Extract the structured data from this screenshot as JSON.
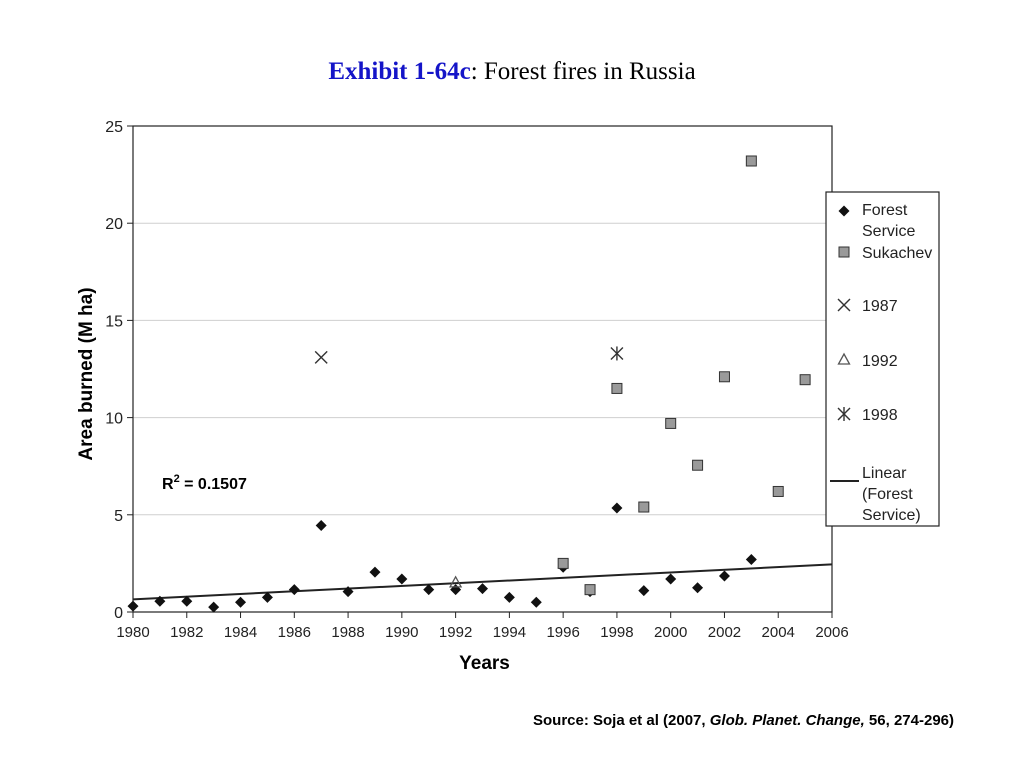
{
  "title": {
    "exhibit": "Exhibit 1-64c",
    "rest": ": Forest fires in Russia"
  },
  "source": {
    "prefix": "Source: Soja et al (2007, ",
    "journal": "Glob. Planet. Change,",
    "suffix": " 56, 274-296)"
  },
  "chart_data": {
    "type": "scatter",
    "xlabel": "Years",
    "ylabel": "Area burned (M ha)",
    "xlim": [
      1980,
      2006
    ],
    "ylim": [
      0,
      25
    ],
    "xticks": [
      1980,
      1982,
      1984,
      1986,
      1988,
      1990,
      1992,
      1994,
      1996,
      1998,
      2000,
      2002,
      2004,
      2006
    ],
    "yticks": [
      0,
      5,
      10,
      15,
      20,
      25
    ],
    "grid": "horizontal",
    "legend_position": "right",
    "annotation": {
      "prefix": "R",
      "sup": "2",
      "suffix": " = 0.1507"
    },
    "series": [
      {
        "name": "Forest Service",
        "marker": "diamond",
        "color": "#111111",
        "points": [
          [
            1980,
            0.3
          ],
          [
            1981,
            0.55
          ],
          [
            1982,
            0.55
          ],
          [
            1983,
            0.25
          ],
          [
            1984,
            0.5
          ],
          [
            1985,
            0.75
          ],
          [
            1986,
            1.15
          ],
          [
            1987,
            4.45
          ],
          [
            1988,
            1.05
          ],
          [
            1989,
            2.05
          ],
          [
            1990,
            1.7
          ],
          [
            1991,
            1.15
          ],
          [
            1992,
            1.15
          ],
          [
            1993,
            1.2
          ],
          [
            1994,
            0.75
          ],
          [
            1995,
            0.5
          ],
          [
            1996,
            2.3
          ],
          [
            1997,
            1.05
          ],
          [
            1998,
            5.35
          ],
          [
            1999,
            1.1
          ],
          [
            2000,
            1.7
          ],
          [
            2001,
            1.25
          ],
          [
            2002,
            1.85
          ],
          [
            2003,
            2.7
          ]
        ]
      },
      {
        "name": "Sukachev",
        "marker": "square",
        "color": "#9a9a9a",
        "points": [
          [
            1996,
            2.5
          ],
          [
            1997,
            1.15
          ],
          [
            1998,
            11.5
          ],
          [
            1999,
            5.4
          ],
          [
            2000,
            9.7
          ],
          [
            2001,
            7.55
          ],
          [
            2002,
            12.1
          ],
          [
            2003,
            23.2
          ],
          [
            2004,
            6.2
          ],
          [
            2005,
            11.95
          ]
        ]
      },
      {
        "name": "1987",
        "marker": "x",
        "color": "#333333",
        "points": [
          [
            1987,
            13.1
          ]
        ]
      },
      {
        "name": "1992",
        "marker": "triangle",
        "color": "#555555",
        "points": [
          [
            1992,
            1.5
          ]
        ]
      },
      {
        "name": "1998",
        "marker": "asterisk",
        "color": "#333333",
        "points": [
          [
            1998,
            13.3
          ]
        ]
      },
      {
        "name": "Linear (Forest Service)",
        "legend_lines": [
          "Linear",
          "(Forest",
          "Service)"
        ],
        "marker": "line",
        "color": "#222222",
        "points": [
          [
            1980,
            0.65
          ],
          [
            2006,
            2.45
          ]
        ]
      }
    ],
    "legend_labels": [
      [
        "Forest",
        "Service"
      ],
      [
        "Sukachev"
      ],
      [
        "1987"
      ],
      [
        "1992"
      ],
      [
        "1998"
      ],
      [
        "Linear",
        "(Forest",
        "Service)"
      ]
    ]
  }
}
